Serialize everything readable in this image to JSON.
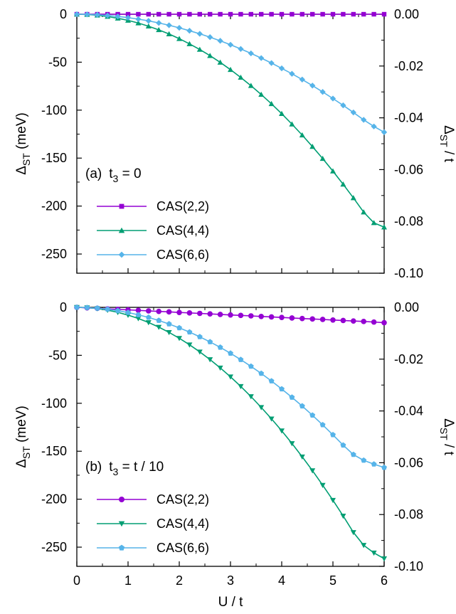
{
  "chart_data": [
    {
      "type": "line",
      "panel_label": "(a)",
      "annotation_main": "t",
      "annotation_sub": "3",
      "annotation_rest": " = 0",
      "ylabel_main": "Δ",
      "ylabel_sub": "ST",
      "ylabel_unit": " (meV)",
      "y2label_main": "Δ",
      "y2label_sub": "ST",
      "y2label_rest": " / t",
      "xlim": [
        0,
        6
      ],
      "ylim": [
        -270,
        0
      ],
      "y2lim": [
        -0.1,
        0.0
      ],
      "xticks": [
        0,
        1,
        2,
        3,
        4,
        5,
        6
      ],
      "yticks": [
        0,
        -50,
        -100,
        -150,
        -200,
        -250
      ],
      "y2ticks": [
        "0.00",
        "-0.02",
        "-0.04",
        "-0.06",
        "-0.08",
        "-0.10"
      ],
      "grid": false,
      "legend_position": "bottom-left",
      "x": [
        0,
        0.2,
        0.4,
        0.6,
        0.8,
        1.0,
        1.2,
        1.4,
        1.6,
        1.8,
        2.0,
        2.2,
        2.4,
        2.6,
        2.8,
        3.0,
        3.2,
        3.4,
        3.6,
        3.8,
        4.0,
        4.2,
        4.4,
        4.6,
        4.8,
        5.0,
        5.2,
        5.4,
        5.6,
        5.8,
        6.0
      ],
      "series": [
        {
          "name": "CAS(2,2)",
          "color": "#9400d3",
          "marker": "square",
          "values": [
            0,
            0,
            0,
            0,
            0,
            0,
            0,
            0,
            0,
            0,
            0,
            0,
            0,
            0,
            0,
            0,
            0,
            0,
            0,
            0,
            0,
            0,
            0,
            0,
            0,
            0,
            0,
            0,
            0,
            0,
            0
          ]
        },
        {
          "name": "CAS(4,4)",
          "color": "#009e73",
          "marker": "triangle-up",
          "values": [
            0,
            -0.3,
            -1.1,
            -2.4,
            -4.2,
            -6.4,
            -9.2,
            -12.5,
            -16.3,
            -20.6,
            -25.5,
            -30.9,
            -36.8,
            -43.2,
            -50.2,
            -57.8,
            -65.9,
            -74.5,
            -83.7,
            -93.4,
            -103.7,
            -114.6,
            -126,
            -138,
            -150.5,
            -163.6,
            -177.3,
            -191.5,
            -206.3,
            -217.5,
            -222
          ]
        },
        {
          "name": "CAS(6,6)",
          "color": "#56b4e9",
          "marker": "diamond",
          "values": [
            0,
            -0.2,
            -0.6,
            -1.3,
            -2.3,
            -3.6,
            -5.1,
            -6.9,
            -9.1,
            -11.5,
            -14.2,
            -17.2,
            -20.4,
            -23.9,
            -27.7,
            -31.8,
            -36.2,
            -40.8,
            -45.7,
            -50.9,
            -56.4,
            -62.1,
            -68.1,
            -74.4,
            -81,
            -87.9,
            -95,
            -102.4,
            -110.1,
            -117,
            -123
          ]
        }
      ]
    },
    {
      "type": "line",
      "panel_label": "(b)",
      "annotation_main": "t",
      "annotation_sub": "3",
      "annotation_rest": " = t / 10",
      "ylabel_main": "Δ",
      "ylabel_sub": "ST",
      "ylabel_unit": " (meV)",
      "y2label_main": "Δ",
      "y2label_sub": "ST",
      "y2label_rest": " / t",
      "xlabel": "U / t",
      "xlim": [
        0,
        6
      ],
      "ylim": [
        -270,
        0
      ],
      "y2lim": [
        -0.1,
        0.0
      ],
      "xticks": [
        0,
        1,
        2,
        3,
        4,
        5,
        6
      ],
      "yticks": [
        0,
        -50,
        -100,
        -150,
        -200,
        -250
      ],
      "y2ticks": [
        "0.00",
        "-0.02",
        "-0.04",
        "-0.06",
        "-0.08",
        "-0.10"
      ],
      "grid": false,
      "legend_position": "bottom-left",
      "x": [
        0,
        0.2,
        0.4,
        0.6,
        0.8,
        1.0,
        1.2,
        1.4,
        1.6,
        1.8,
        2.0,
        2.2,
        2.4,
        2.6,
        2.8,
        3.0,
        3.2,
        3.4,
        3.6,
        3.8,
        4.0,
        4.2,
        4.4,
        4.6,
        4.8,
        5.0,
        5.2,
        5.4,
        5.6,
        5.8,
        6.0
      ],
      "series": [
        {
          "name": "CAS(2,2)",
          "color": "#9400d3",
          "marker": "circle",
          "values": [
            0,
            -0.5,
            -1.0,
            -1.6,
            -2.1,
            -2.6,
            -3.1,
            -3.7,
            -4.2,
            -4.7,
            -5.3,
            -5.8,
            -6.3,
            -6.8,
            -7.4,
            -7.9,
            -8.4,
            -8.9,
            -9.5,
            -10.0,
            -10.5,
            -11.1,
            -11.6,
            -12.1,
            -12.6,
            -13.2,
            -13.7,
            -14.2,
            -14.7,
            -15.3,
            -16.0
          ]
        },
        {
          "name": "CAS(4,4)",
          "color": "#009e73",
          "marker": "triangle-down",
          "values": [
            0,
            -0.3,
            -1.3,
            -2.9,
            -5.2,
            -8.1,
            -11.6,
            -15.8,
            -20.6,
            -26.1,
            -32.2,
            -39.0,
            -46.4,
            -54.4,
            -63.1,
            -72.4,
            -82.4,
            -93.0,
            -104.3,
            -116.2,
            -128.7,
            -141.9,
            -155.8,
            -170.2,
            -185.4,
            -201.1,
            -217.5,
            -234.6,
            -248.0,
            -256.0,
            -262.0
          ]
        },
        {
          "name": "CAS(6,6)",
          "color": "#56b4e9",
          "marker": "pentagon",
          "values": [
            0,
            -0.3,
            -0.9,
            -2.0,
            -3.5,
            -5.4,
            -7.8,
            -10.5,
            -13.7,
            -17.3,
            -21.4,
            -25.8,
            -30.7,
            -36.0,
            -41.7,
            -47.9,
            -54.5,
            -61.5,
            -68.9,
            -76.8,
            -85.1,
            -93.8,
            -102.9,
            -112.5,
            -122.5,
            -132.9,
            -143.7,
            -153.5,
            -159.5,
            -163.5,
            -167.0
          ]
        }
      ]
    }
  ]
}
